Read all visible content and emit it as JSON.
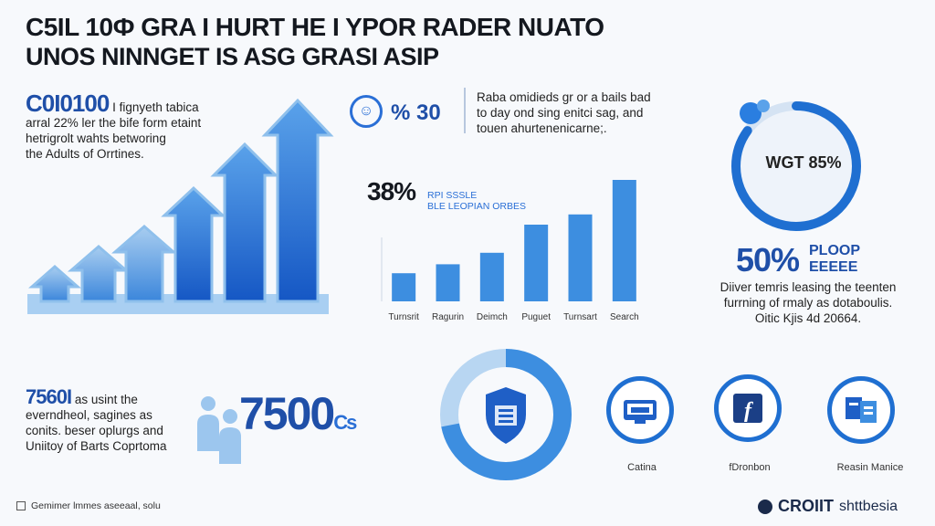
{
  "header": {
    "line1": "C5IL 10Ф GRA I HURT HE I YPOR RADER NUATO",
    "line2": "UNOS NINNGET IS ASG GRASI ASIP"
  },
  "intro": {
    "big": "C0I0100",
    "lines": [
      "I fignyeth tabica",
      "arral 22% ler the bife form etaint",
      "hetrigrolt wahts betworing",
      "the Adults of Orrtines."
    ]
  },
  "stat_top": {
    "icon_glyph": "☺",
    "value": "% 30",
    "lines": [
      "Raba omidieds gr or a bails bad",
      "to day ond sing enitci sag, and",
      "touen ahurtenenicarne;."
    ]
  },
  "bar_block": {
    "value": "38%",
    "caption": [
      "RPI SSSLE",
      "BLE LEOPIAN ORBES"
    ]
  },
  "chart_data": {
    "type": "bar",
    "categories": [
      "Turnsrit",
      "Ragurin",
      "Deimch",
      "Puguet",
      "Turnsart",
      "Search"
    ],
    "values": [
      22,
      29,
      38,
      60,
      68,
      95
    ],
    "ylim": [
      0,
      100
    ],
    "color": "#3d8ee0"
  },
  "ring": {
    "label": "WGT 85%",
    "fraction": 0.85,
    "color": "#1f6fd1"
  },
  "fifty": {
    "value": "50%",
    "caption": [
      "PLOOP",
      "EEEEE"
    ],
    "lines": [
      "Diiver temris leasing the teenten",
      "furrning of rmaly as dotaboulis.",
      "Oitic Kjis 4d 20664."
    ]
  },
  "bottom_left": {
    "big": "7560I",
    "lines": [
      "as usint the",
      "everndheol, sagines as",
      "conits. beser oplurgs and",
      "Uniitoy of Barts Coprtoma"
    ]
  },
  "seven": {
    "value": "7500",
    "suffix": "Cs"
  },
  "donut": {
    "fraction": 0.72,
    "color": "#3d8ee0",
    "track": "#b8d6f2"
  },
  "icons": [
    {
      "name": "printer-icon",
      "label": "Catina"
    },
    {
      "name": "facebook-icon",
      "label": "fDronbon"
    },
    {
      "name": "documents-icon",
      "label": "Reasin Manice"
    }
  ],
  "footer": {
    "left": "Gemimer lmmes aseeaal, solu",
    "brand": "CROIIT",
    "brand2": "shttbesia"
  },
  "colors": {
    "accent": "#1f4fa8",
    "bar": "#3d8ee0",
    "light": "#b8d6f2"
  }
}
